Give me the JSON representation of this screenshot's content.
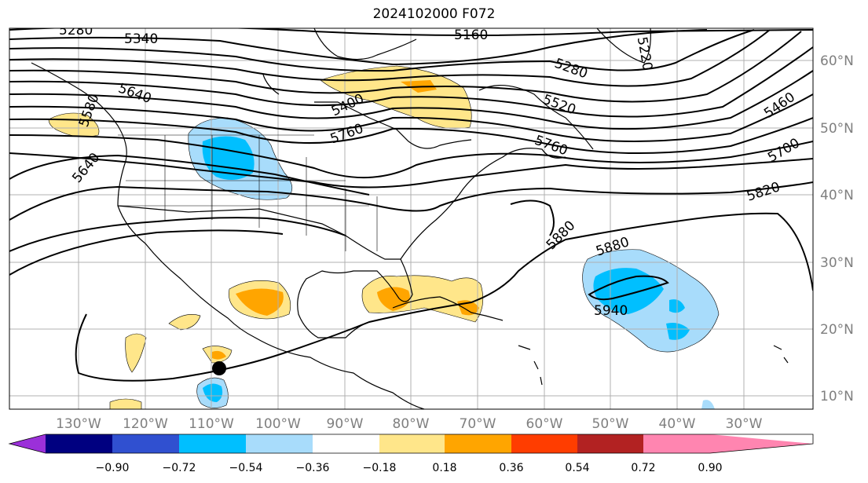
{
  "title": "2024102000 F072",
  "map": {
    "lon_labels": [
      "130°W",
      "120°W",
      "110°W",
      "100°W",
      "90°W",
      "80°W",
      "70°W",
      "60°W",
      "50°W",
      "40°W",
      "30°W"
    ],
    "lat_labels": [
      "60°N",
      "50°N",
      "40°N",
      "30°N",
      "20°N",
      "10°N"
    ],
    "contour_labels": [
      "5280",
      "5340",
      "5160",
      "5220",
      "5640",
      "5580",
      "5400",
      "5280",
      "5520",
      "5460",
      "5760",
      "5700",
      "5640",
      "5760",
      "5820",
      "5880",
      "5880",
      "5940"
    ],
    "marker": "storm-center"
  },
  "colorbar": {
    "ticks": [
      "−0.90",
      "−0.72",
      "−0.54",
      "−0.36",
      "−0.18",
      "0.18",
      "0.36",
      "0.54",
      "0.72",
      "0.90"
    ],
    "colors": [
      "#9b30d9",
      "#000080",
      "#3050d0",
      "#00bfff",
      "#a8dcfb",
      "#ffffff",
      "#ffe68a",
      "#ffa500",
      "#ff3d00",
      "#b22222",
      "#ff85b0"
    ]
  }
}
